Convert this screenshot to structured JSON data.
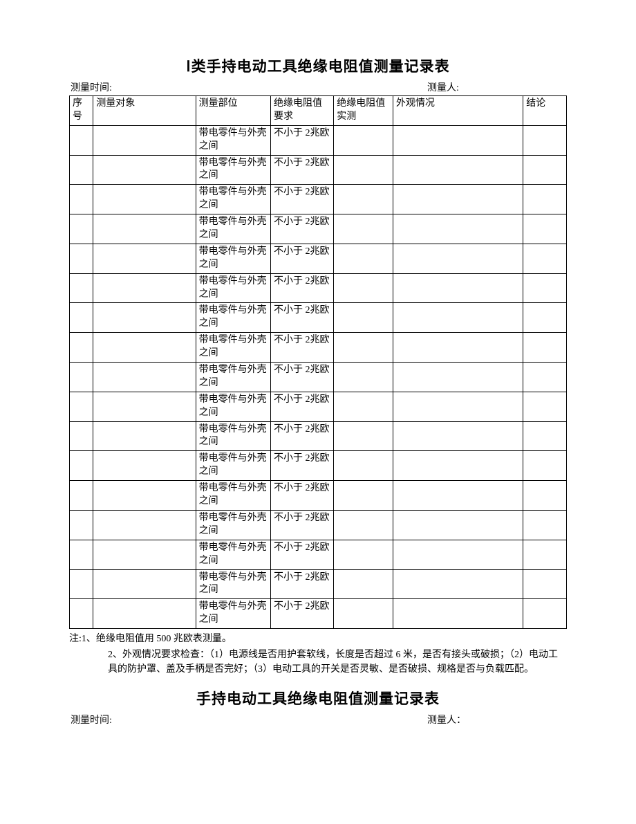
{
  "section1": {
    "title": "Ⅰ类手持电动工具绝缘电阻值测量记录表",
    "meta": {
      "time_label": "测量时间:",
      "person_label": "测量人:"
    },
    "table": {
      "columns": [
        "序号",
        "测量对象",
        "测量部位",
        "绝缘电阻值要求",
        "绝缘电阻值实测",
        "外观情况",
        "结论"
      ],
      "col_widths_class": [
        "col-seq",
        "col-obj",
        "col-part",
        "col-req",
        "col-actual",
        "col-appear",
        "col-concl"
      ],
      "default_part": "带电零件与外壳之间",
      "default_req": "不小于 2兆欧",
      "row_count": 17,
      "border_color": "#000000",
      "font_size": 14
    },
    "notes": {
      "prefix": "注:",
      "items": [
        "1、绝缘电阻值用 500 兆欧表测量。",
        "2、外观情况要求检查：（1）电源线是否用护套软线，长度是否超过 6 米，是否有接头或破损；（2）电动工具的防护罩、盖及手柄是否完好；（3）电动工具的开关是否灵敏、是否破损、规格是否与负载匹配。"
      ]
    }
  },
  "section2": {
    "title": "手持电动工具绝缘电阻值测量记录表",
    "meta": {
      "time_label": "测量时间:",
      "person_label": "测量人："
    }
  },
  "style": {
    "background_color": "#ffffff",
    "text_color": "#000000",
    "title_fontsize": 21,
    "body_fontsize": 14
  }
}
